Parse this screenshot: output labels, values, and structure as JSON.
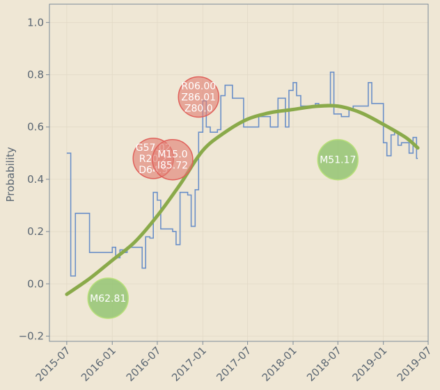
{
  "chart_data": {
    "type": "line",
    "title": "",
    "xlabel": "",
    "ylabel": "Probability",
    "xlim": [
      "2015-04-22",
      "2019-07-01"
    ],
    "ylim": [
      -0.22,
      1.07
    ],
    "x_tick_labels": [
      "2015-07",
      "2016-01",
      "2016-07",
      "2017-01",
      "2017-07",
      "2018-01",
      "2018-07",
      "2019-01",
      "2019-07"
    ],
    "x_tick_dates": [
      "2015-07-01",
      "2016-01-01",
      "2016-07-01",
      "2017-01-01",
      "2017-07-01",
      "2018-01-01",
      "2018-07-01",
      "2019-01-01",
      "2019-07-01"
    ],
    "y_ticks": [
      -0.2,
      0.0,
      0.2,
      0.4,
      0.6,
      0.8,
      1.0
    ],
    "y_tick_labels": [
      "−0.2",
      "0.0",
      "0.2",
      "0.4",
      "0.6",
      "0.8",
      "1.0"
    ],
    "grid": true,
    "colors": {
      "background": "#efe7d5",
      "step_line": "#6a8fc8",
      "trend_line": "#8aaa4a",
      "axis": "#7a8896",
      "text": "#5a6672",
      "red_bubble_fill": "#e07e72",
      "red_bubble_stroke": "#e0605a",
      "green_bubble_fill": "#8cc26a",
      "green_bubble_stroke": "#b9e07a"
    },
    "series": [
      {
        "type": "step",
        "x": [
          "2015-07-01",
          "2015-07-17",
          "2015-08-05",
          "2015-10-01",
          "2016-01-01",
          "2016-01-15",
          "2016-02-01",
          "2016-02-15",
          "2016-03-01",
          "2016-05-01",
          "2016-05-15",
          "2016-06-01",
          "2016-06-15",
          "2016-07-01",
          "2016-07-15",
          "2016-09-01",
          "2016-09-15",
          "2016-10-01",
          "2016-11-01",
          "2016-11-15",
          "2016-12-01",
          "2016-12-15",
          "2017-01-01",
          "2017-01-15",
          "2017-01-31",
          "2017-03-01",
          "2017-03-15",
          "2017-04-01",
          "2017-05-01",
          "2017-06-01",
          "2017-06-15",
          "2017-08-01",
          "2017-08-15",
          "2017-10-01",
          "2017-10-15",
          "2017-11-01",
          "2017-12-01",
          "2017-12-15",
          "2018-01-01",
          "2018-01-15",
          "2018-02-01",
          "2018-04-01",
          "2018-04-15",
          "2018-06-01",
          "2018-06-15",
          "2018-07-15",
          "2018-08-15",
          "2018-09-01",
          "2018-09-15",
          "2018-11-01",
          "2018-11-15",
          "2018-12-01",
          "2019-01-01",
          "2019-01-15",
          "2019-02-01",
          "2019-02-15",
          "2019-03-01",
          "2019-03-15",
          "2019-04-15",
          "2019-05-01",
          "2019-05-15",
          "2019-05-20"
        ],
        "y": [
          0.5,
          0.03,
          0.27,
          0.12,
          0.14,
          0.1,
          0.13,
          0.12,
          0.14,
          0.06,
          0.18,
          0.175,
          0.35,
          0.32,
          0.21,
          0.2,
          0.15,
          0.35,
          0.34,
          0.22,
          0.36,
          0.58,
          0.7,
          0.6,
          0.58,
          0.59,
          0.72,
          0.76,
          0.71,
          0.71,
          0.6,
          0.6,
          0.64,
          0.6,
          0.6,
          0.71,
          0.6,
          0.74,
          0.77,
          0.72,
          0.68,
          0.69,
          0.68,
          0.81,
          0.65,
          0.64,
          0.67,
          0.68,
          0.68,
          0.77,
          0.69,
          0.69,
          0.54,
          0.49,
          0.57,
          0.58,
          0.53,
          0.54,
          0.5,
          0.56,
          0.48,
          0.48
        ]
      },
      {
        "type": "smooth",
        "x": [
          "2015-07-01",
          "2015-10-01",
          "2016-01-01",
          "2016-04-01",
          "2016-07-01",
          "2016-10-01",
          "2017-01-01",
          "2017-04-01",
          "2017-07-01",
          "2017-10-01",
          "2018-01-01",
          "2018-04-01",
          "2018-07-01",
          "2018-10-01",
          "2019-01-01",
          "2019-04-01",
          "2019-05-20"
        ],
        "y": [
          -0.04,
          0.02,
          0.09,
          0.16,
          0.26,
          0.38,
          0.51,
          0.58,
          0.63,
          0.655,
          0.667,
          0.679,
          0.68,
          0.655,
          0.61,
          0.56,
          0.52
        ]
      }
    ],
    "annotations": [
      {
        "lines": [
          "R06.00",
          "Z86.01",
          "Z80.0"
        ],
        "x": "2016-12-15",
        "y": 0.715,
        "color": "red"
      },
      {
        "lines": [
          "G57.02",
          "R20.2",
          "D64.9"
        ],
        "x": "2016-06-15",
        "y": 0.48,
        "color": "red"
      },
      {
        "lines": [
          "M15.0",
          "I85.72"
        ],
        "x": "2016-09-01",
        "y": 0.475,
        "color": "red"
      },
      {
        "lines": [
          "M51.17"
        ],
        "x": "2018-07-01",
        "y": 0.475,
        "color": "green"
      },
      {
        "lines": [
          "M62.81"
        ],
        "x": "2015-12-15",
        "y": -0.055,
        "color": "green"
      }
    ]
  }
}
